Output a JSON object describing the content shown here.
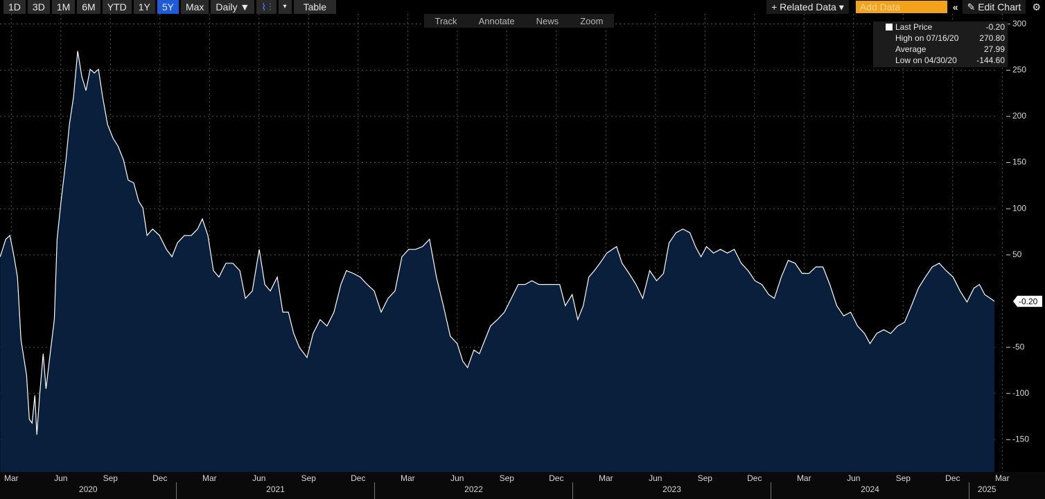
{
  "toolbar": {
    "ranges": [
      "1D",
      "3D",
      "1M",
      "6M",
      "YTD",
      "1Y",
      "5Y",
      "Max"
    ],
    "frequency": "Daily ▼",
    "table": "Table",
    "related": "+ Related Data ▾",
    "add_data": "Add Data",
    "edit": "Edit Chart"
  },
  "tools": [
    "Track",
    "Annotate",
    "News",
    "Zoom"
  ],
  "legend": [
    {
      "label": "Last Price",
      "value": "-0.20"
    },
    {
      "label": "High on 07/16/20",
      "value": "270.80"
    },
    {
      "label": "Average",
      "value": "27.99"
    },
    {
      "label": "Low on 04/30/20",
      "value": "-144.60"
    }
  ],
  "chart_data": {
    "type": "area",
    "line_color": "#ffffff",
    "fill_color": "#0a1f3c",
    "grid": true,
    "last_label": "-0.20",
    "xlim": [
      2020.11,
      2025.18
    ],
    "ylim": [
      -185,
      311
    ],
    "yticks": [
      -150,
      -100,
      -50,
      50,
      100,
      150,
      200,
      250,
      300
    ],
    "xticks": [
      {
        "value": 2020.167,
        "label": "Mar"
      },
      {
        "value": 2020.417,
        "label": "Jun"
      },
      {
        "value": 2020.667,
        "label": "Sep"
      },
      {
        "value": 2020.917,
        "label": "Dec"
      },
      {
        "value": 2021.167,
        "label": "Mar"
      },
      {
        "value": 2021.417,
        "label": "Jun"
      },
      {
        "value": 2021.667,
        "label": "Sep"
      },
      {
        "value": 2021.917,
        "label": "Dec"
      },
      {
        "value": 2022.167,
        "label": "Mar"
      },
      {
        "value": 2022.417,
        "label": "Jun"
      },
      {
        "value": 2022.667,
        "label": "Sep"
      },
      {
        "value": 2022.917,
        "label": "Dec"
      },
      {
        "value": 2023.167,
        "label": "Mar"
      },
      {
        "value": 2023.417,
        "label": "Jun"
      },
      {
        "value": 2023.667,
        "label": "Sep"
      },
      {
        "value": 2023.917,
        "label": "Dec"
      },
      {
        "value": 2024.167,
        "label": "Mar"
      },
      {
        "value": 2024.417,
        "label": "Jun"
      },
      {
        "value": 2024.667,
        "label": "Sep"
      },
      {
        "value": 2024.917,
        "label": "Dec"
      },
      {
        "value": 2025.167,
        "label": "Mar"
      }
    ],
    "years": [
      2020,
      2021,
      2022,
      2023,
      2024,
      2025
    ],
    "x": [
      2020.111,
      2020.139,
      2020.16,
      2020.181,
      2020.198,
      2020.216,
      2020.244,
      2020.258,
      2020.272,
      2020.286,
      2020.296,
      2020.31,
      2020.328,
      2020.342,
      2020.363,
      2020.384,
      2020.398,
      2020.418,
      2020.443,
      2020.46,
      2020.481,
      2020.502,
      2020.523,
      2020.544,
      2020.565,
      2020.586,
      2020.607,
      2020.628,
      2020.653,
      2020.681,
      2020.705,
      2020.733,
      2020.757,
      2020.785,
      2020.81,
      2020.831,
      2020.852,
      2020.88,
      2020.915,
      2020.95,
      2020.978,
      2021.005,
      2021.04,
      2021.075,
      2021.107,
      2021.131,
      2021.159,
      2021.187,
      2021.215,
      2021.25,
      2021.285,
      2021.32,
      2021.348,
      2021.383,
      2021.418,
      2021.446,
      2021.474,
      2021.509,
      2021.537,
      2021.565,
      2021.592,
      2021.62,
      2021.659,
      2021.69,
      2021.725,
      2021.76,
      2021.795,
      2021.83,
      2021.858,
      2021.893,
      2021.928,
      2021.963,
      2021.998,
      2022.033,
      2022.068,
      2022.103,
      2022.138,
      2022.172,
      2022.207,
      2022.242,
      2022.277,
      2022.312,
      2022.347,
      2022.382,
      2022.417,
      2022.445,
      2022.469,
      2022.501,
      2022.529,
      2022.557,
      2022.585,
      2022.62,
      2022.655,
      2022.69,
      2022.725,
      2022.759,
      2022.794,
      2022.829,
      2022.864,
      2022.899,
      2022.934,
      2022.962,
      2022.997,
      2023.025,
      2023.053,
      2023.081,
      2023.109,
      2023.137,
      2023.172,
      2023.2,
      2023.221,
      2023.249,
      2023.284,
      2023.319,
      2023.353,
      2023.388,
      2023.423,
      2023.458,
      2023.486,
      2023.521,
      2023.556,
      2023.591,
      2023.619,
      2023.647,
      2023.675,
      2023.71,
      2023.745,
      2023.78,
      2023.815,
      2023.85,
      2023.885,
      2023.919,
      2023.954,
      2023.989,
      2024.017,
      2024.052,
      2024.087,
      2024.122,
      2024.157,
      2024.192,
      2024.227,
      2024.262,
      2024.297,
      2024.332,
      2024.367,
      2024.402,
      2024.437,
      2024.472,
      2024.5,
      2024.534,
      2024.569,
      2024.604,
      2024.639,
      2024.674,
      2024.709,
      2024.744,
      2024.779,
      2024.814,
      2024.849,
      2024.884,
      2024.919,
      2024.954,
      2024.989,
      2025.024,
      2025.052,
      2025.079,
      2025.107,
      2025.128
    ],
    "values": [
      48,
      67,
      71,
      48,
      26,
      -42,
      -80,
      -128,
      -132,
      -102,
      -144.6,
      -102,
      -57,
      -95,
      -57,
      -20,
      67,
      108,
      153,
      191,
      221,
      270.8,
      243,
      228,
      251,
      247,
      251,
      221,
      191,
      176,
      168,
      153,
      131,
      128,
      108,
      101,
      71,
      78,
      71,
      56,
      48,
      63,
      71,
      71,
      78,
      89,
      71,
      33,
      26,
      41,
      41,
      33,
      3,
      11,
      56,
      18,
      11,
      26,
      -12,
      -12,
      -35,
      -50,
      -61,
      -35,
      -20,
      -27,
      -12,
      18,
      33,
      30,
      26,
      18,
      11,
      -12,
      3,
      11,
      48,
      56,
      56,
      59,
      67,
      26,
      -5,
      -38,
      -46,
      -65,
      -72,
      -53,
      -57,
      -42,
      -27,
      -20,
      -12,
      3,
      18,
      18,
      22,
      18,
      18,
      18,
      18,
      -5,
      7,
      -20,
      -5,
      26,
      33,
      41,
      52,
      56,
      59,
      41,
      30,
      18,
      3,
      33,
      22,
      30,
      63,
      74,
      78,
      74,
      59,
      48,
      59,
      52,
      56,
      52,
      56,
      41,
      33,
      22,
      18,
      7,
      3,
      26,
      44,
      41,
      30,
      30,
      37,
      37,
      18,
      -5,
      -16,
      -12,
      -27,
      -35,
      -46,
      -35,
      -31,
      -35,
      -27,
      -23,
      -5,
      14,
      26,
      37,
      41,
      33,
      26,
      11,
      -1,
      14,
      18,
      7,
      3,
      -0.2
    ]
  }
}
